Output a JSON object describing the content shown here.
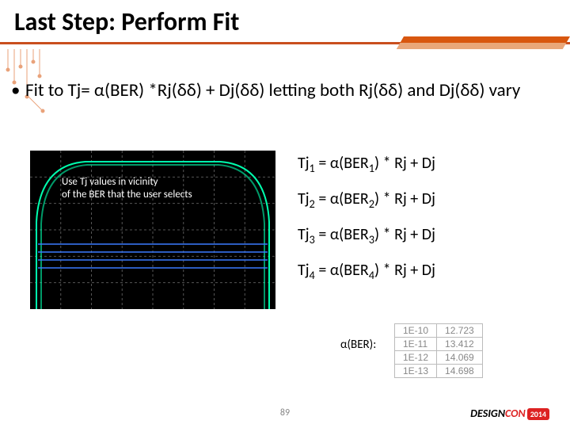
{
  "title": "Last Step: Perform Fit",
  "bullet_text": "Fit to Tj= α(BER) *Rj(δδ) + Dj(δδ) letting both Rj(δδ) and Dj(δδ) vary",
  "eye_caption_l1": "Use Tj values in vicinity",
  "eye_caption_l2": "of the BER that the user selects",
  "equations": {
    "e1": {
      "lhs": "Tj",
      "sub": "1",
      "rhs": " = α(BER",
      "sub2": "1",
      "tail": ") * Rj + Dj"
    },
    "e2": {
      "lhs": "Tj",
      "sub": "2",
      "rhs": " = α(BER",
      "sub2": "2",
      "tail": ") * Rj + Dj"
    },
    "e3": {
      "lhs": "Tj",
      "sub": "3",
      "rhs": " = α(BER",
      "sub2": "3",
      "tail": ") * Rj + Dj"
    },
    "e4": {
      "lhs": "Tj",
      "sub": "4",
      "rhs": " = α(BER",
      "sub2": "4",
      "tail": ") * Rj + Dj"
    }
  },
  "alpha_label": "α(BER):",
  "alpha_table": {
    "rows": [
      [
        "1E-10",
        "12.723"
      ],
      [
        "1E-11",
        "13.412"
      ],
      [
        "1E-12",
        "14.069"
      ],
      [
        "1E-13",
        "14.698"
      ]
    ]
  },
  "eye_plot": {
    "bg": "#000000",
    "grid_color": "#555555",
    "eye_color": "#00ffae",
    "horiz_lines_color": "#3a7bff",
    "dash": "3,3",
    "horiz_y": [
      118,
      128,
      138,
      148
    ]
  },
  "page_number": "89",
  "logo": {
    "d": "DESIGN",
    "con": "CON",
    "year": "2014"
  },
  "circuit_color": "#d8570f"
}
